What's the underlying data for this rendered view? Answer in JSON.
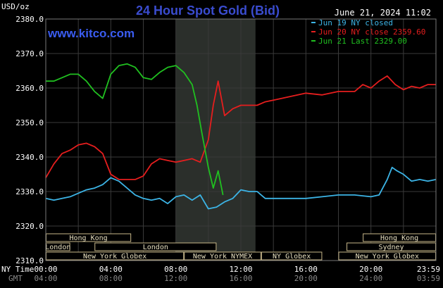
{
  "chart_data": {
    "type": "line",
    "title": "24 Hour Spot Gold (Bid)",
    "watermark": "www.kitco.com",
    "timestamp": "June 21, 2024 11:02",
    "ylabel": "USD/oz",
    "ylim": [
      2310,
      2380
    ],
    "y_ticks": [
      "2310.0",
      "2320.0",
      "2330.0",
      "2340.0",
      "2350.0",
      "2360.0",
      "2370.0",
      "2380.0"
    ],
    "xlim": [
      0,
      24
    ],
    "x_row_labels": [
      "NY Time",
      "GMT"
    ],
    "x_ticks_ny": [
      "00:00",
      "04:00",
      "08:00",
      "12:00",
      "16:00",
      "20:00",
      "23:59"
    ],
    "x_ticks_gmt": [
      "04:00",
      "08:00",
      "12:00",
      "16:00",
      "20:00",
      "24:00",
      "03:59"
    ],
    "grid": true,
    "legend_position": "top-right",
    "shaded_region": [
      8,
      12.9
    ],
    "series": [
      {
        "name": "Jun 19 NY closed",
        "color": "#3cb4e6",
        "x": [
          0,
          0.5,
          1,
          1.5,
          2,
          2.5,
          3,
          3.5,
          4,
          4.5,
          5,
          5.5,
          6,
          6.5,
          7,
          7.5,
          8,
          8.5,
          9,
          9.5,
          10,
          10.5,
          11,
          11.5,
          12,
          12.5,
          13,
          13.5,
          14,
          15,
          16,
          17,
          18,
          19,
          20,
          20.5,
          21,
          21.3,
          21.6,
          22,
          22.5,
          23,
          23.5,
          24
        ],
        "values": [
          2328,
          2327.5,
          2328,
          2328.5,
          2329.5,
          2330.5,
          2331,
          2332,
          2334,
          2333,
          2331,
          2329,
          2328,
          2327.5,
          2328,
          2326.5,
          2328.5,
          2329,
          2327.5,
          2329,
          2325,
          2325.5,
          2327,
          2328,
          2330.5,
          2330,
          2330,
          2328,
          2328,
          2328,
          2328,
          2328.5,
          2329,
          2329,
          2328.5,
          2329,
          2333.5,
          2337,
          2336,
          2335,
          2333,
          2333.5,
          2333,
          2333.5
        ]
      },
      {
        "name": "Jun 20 NY close 2359.60",
        "color": "#e61e1e",
        "x": [
          0,
          0.5,
          1,
          1.5,
          2,
          2.5,
          3,
          3.5,
          4,
          4.5,
          5,
          5.5,
          6,
          6.5,
          7,
          7.5,
          8,
          8.5,
          9,
          9.5,
          10,
          10.3,
          10.6,
          11,
          11.5,
          12,
          12.5,
          13,
          13.5,
          14,
          15,
          16,
          17,
          18,
          19,
          19.5,
          20,
          20.5,
          21,
          21.5,
          22,
          22.5,
          23,
          23.5,
          24
        ],
        "values": [
          2334,
          2338,
          2341,
          2342,
          2343.5,
          2344,
          2343,
          2341,
          2335,
          2333.5,
          2333.5,
          2333.5,
          2334.5,
          2338,
          2339.5,
          2339,
          2338.5,
          2339,
          2339.5,
          2338.5,
          2345,
          2355,
          2362,
          2352,
          2354,
          2355,
          2355,
          2355,
          2356,
          2356.5,
          2357.5,
          2358.5,
          2358,
          2359,
          2359,
          2361,
          2360,
          2362,
          2363.5,
          2361,
          2359.5,
          2360.5,
          2360,
          2361,
          2361
        ]
      },
      {
        "name": "Jun 21 Last 2329.00",
        "color": "#20c020",
        "x": [
          0,
          0.5,
          1,
          1.5,
          2,
          2.5,
          3,
          3.5,
          4,
          4.5,
          5,
          5.5,
          6,
          6.5,
          7,
          7.5,
          8,
          8.5,
          9,
          9.3,
          9.6,
          10,
          10.3,
          10.6,
          10.9
        ],
        "values": [
          2362,
          2362,
          2363,
          2364,
          2364,
          2362,
          2359,
          2357,
          2364,
          2366.5,
          2367,
          2366,
          2363,
          2362.5,
          2364.5,
          2366,
          2366.5,
          2364.5,
          2361,
          2355,
          2347,
          2337,
          2331,
          2336,
          2329
        ]
      }
    ],
    "sessions": [
      {
        "label": "Hong Kong",
        "start": 0,
        "end": 5.25,
        "row": 0
      },
      {
        "label": "Hong Kong",
        "start": 19.5,
        "end": 24,
        "row": 0
      },
      {
        "label": "London",
        "start": 0,
        "end": 1.5,
        "row": 1
      },
      {
        "label": "London",
        "start": 3,
        "end": 10.5,
        "row": 1
      },
      {
        "label": "Sydney",
        "start": 18.5,
        "end": 24,
        "row": 1
      },
      {
        "label": "New York Globex",
        "start": 0,
        "end": 8.5,
        "row": 2
      },
      {
        "label": "New York NYMEX",
        "start": 8.5,
        "end": 13.25,
        "row": 2
      },
      {
        "label": "NY Globex",
        "start": 13.25,
        "end": 17,
        "row": 2
      },
      {
        "label": "New York Globex",
        "start": 18,
        "end": 24,
        "row": 2
      }
    ]
  }
}
